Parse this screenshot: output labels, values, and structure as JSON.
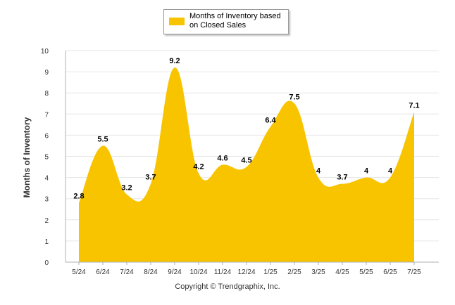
{
  "chart_data": {
    "type": "area",
    "title": "",
    "xlabel": "",
    "ylabel": "Months of Inventory",
    "categories": [
      "5/24",
      "6/24",
      "7/24",
      "8/24",
      "9/24",
      "10/24",
      "11/24",
      "12/24",
      "1/25",
      "2/25",
      "3/25",
      "4/25",
      "5/25",
      "6/25",
      "7/25"
    ],
    "series": [
      {
        "name": "Months of Inventory based on Closed Sales",
        "values": [
          2.8,
          5.5,
          3.2,
          3.7,
          9.2,
          4.2,
          4.6,
          4.5,
          6.4,
          7.5,
          4,
          3.7,
          4,
          4,
          7.1
        ],
        "labels": [
          "2.8",
          "5.5",
          "3.2",
          "3.7",
          "9.2",
          "4.2",
          "4.6",
          "4.5",
          "6.4",
          "7.5",
          "4",
          "3.7",
          "4",
          "4",
          "7.1"
        ]
      }
    ],
    "ylim": [
      0,
      10
    ],
    "yticks": [
      "0",
      "1",
      "2",
      "3",
      "4",
      "5",
      "6",
      "7",
      "8",
      "9",
      "10"
    ],
    "grid": true,
    "smooth": true,
    "legend_position": "top-center",
    "colors": {
      "area": "#f8c400",
      "grid": "#e6e6e6",
      "axis": "#b0b0b0"
    }
  },
  "legend": {
    "line1": "Months of Inventory based",
    "line2": "on Closed Sales"
  },
  "footer": {
    "copyright": "Copyright © Trendgraphix, Inc."
  }
}
